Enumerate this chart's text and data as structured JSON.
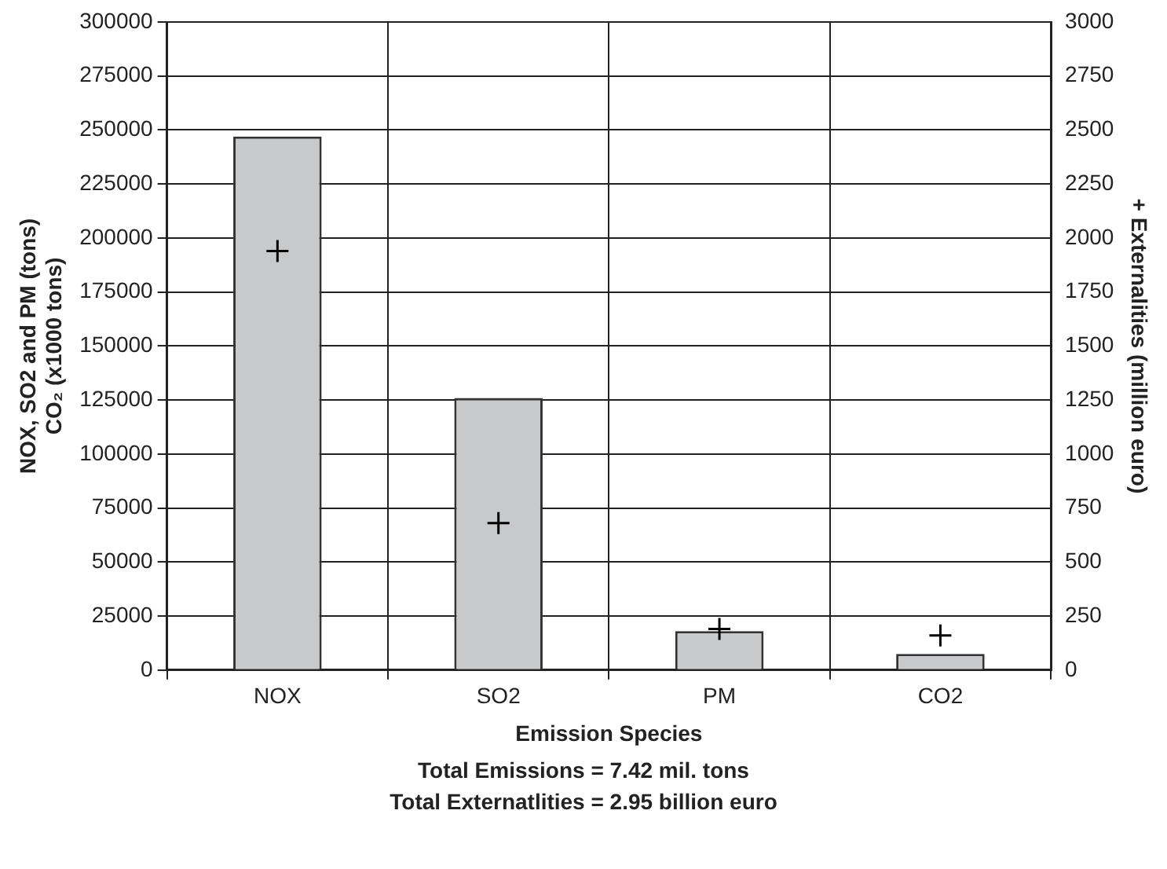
{
  "chart_data": {
    "type": "bar",
    "categories": [
      "NOX",
      "SO2",
      "PM",
      "CO2"
    ],
    "xlabel": "Emission Species",
    "ylabel": "NOX, SO2 and PM (tons)\nCO₂ (x1000 tons)",
    "y2label": "+ Externalities (million euro)",
    "series": [
      {
        "color": "#c8c9cb",
        "values": [
          247000,
          126000,
          18000,
          7500
        ]
      },
      {
        "type": "scatter",
        "axis": "y2",
        "color": "#000000",
        "x": [
          "NOX",
          "SO2",
          "PM",
          "CO2"
        ],
        "values": [
          1940,
          680,
          190,
          160
        ]
      }
    ],
    "ylim": [
      0,
      300000
    ],
    "yticks": [
      0,
      25000,
      50000,
      75000,
      100000,
      125000,
      150000,
      175000,
      200000,
      225000,
      250000,
      275000,
      300000
    ],
    "y2lim": [
      0,
      3000
    ],
    "y2ticks": [
      0,
      250,
      500,
      750,
      1000,
      1250,
      1500,
      1750,
      2000,
      2250,
      2500,
      2750,
      3000
    ],
    "grid": true,
    "marker": "cross",
    "annotations": [
      "Total Emissions = 7.42 mil. tons",
      "Total Externatlities = 2.95 billion euro"
    ]
  }
}
